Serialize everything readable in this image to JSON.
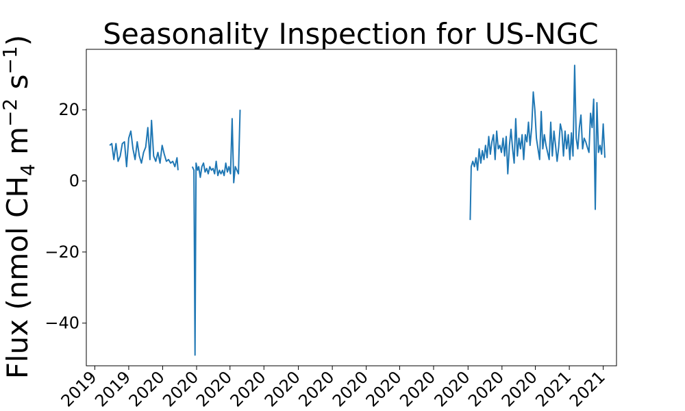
{
  "chart_data": {
    "type": "line",
    "title": "Seasonality Inspection for US-NGC",
    "ylabel_parts": [
      "Flux (nmol CH",
      "4",
      " m",
      "−2",
      " s",
      "−1",
      ")"
    ],
    "ylim": [
      -52,
      37
    ],
    "y_ticks": [
      {
        "value": 20,
        "label": "20"
      },
      {
        "value": 0,
        "label": "0"
      },
      {
        "value": -20,
        "label": "−20"
      },
      {
        "value": -40,
        "label": "−40"
      }
    ],
    "x_ticks": [
      {
        "t": 0.016,
        "label": "2019"
      },
      {
        "t": 0.08,
        "label": "2019"
      },
      {
        "t": 0.144,
        "label": "2020"
      },
      {
        "t": 0.208,
        "label": "2020"
      },
      {
        "t": 0.271,
        "label": "2020"
      },
      {
        "t": 0.335,
        "label": "2020"
      },
      {
        "t": 0.4,
        "label": "2020"
      },
      {
        "t": 0.464,
        "label": "2020"
      },
      {
        "t": 0.528,
        "label": "2020"
      },
      {
        "t": 0.591,
        "label": "2020"
      },
      {
        "t": 0.655,
        "label": "2020"
      },
      {
        "t": 0.72,
        "label": "2020"
      },
      {
        "t": 0.784,
        "label": "2020"
      },
      {
        "t": 0.847,
        "label": "2020"
      },
      {
        "t": 0.911,
        "label": "2021"
      },
      {
        "t": 0.975,
        "label": "2021"
      }
    ],
    "series": [
      {
        "color": "#1f77b4",
        "segments": [
          [
            [
              0.044,
              10.0
            ],
            [
              0.048,
              10.5
            ],
            [
              0.052,
              6.0
            ],
            [
              0.056,
              10.5
            ],
            [
              0.06,
              5.5
            ],
            [
              0.064,
              7.0
            ],
            [
              0.068,
              10.5
            ],
            [
              0.072,
              11.0
            ],
            [
              0.076,
              4.0
            ],
            [
              0.08,
              12.0
            ],
            [
              0.084,
              14.0
            ],
            [
              0.088,
              9.0
            ],
            [
              0.092,
              6.0
            ],
            [
              0.096,
              11.0
            ],
            [
              0.1,
              7.0
            ],
            [
              0.104,
              5.0
            ],
            [
              0.108,
              8.0
            ],
            [
              0.112,
              9.5
            ],
            [
              0.116,
              15.0
            ],
            [
              0.12,
              6.0
            ],
            [
              0.123,
              17.0
            ],
            [
              0.127,
              7.0
            ],
            [
              0.131,
              5.5
            ],
            [
              0.135,
              8.0
            ],
            [
              0.139,
              5.0
            ],
            [
              0.143,
              10.0
            ],
            [
              0.147,
              7.5
            ],
            [
              0.151,
              5.5
            ],
            [
              0.155,
              6.0
            ],
            [
              0.159,
              5.0
            ],
            [
              0.163,
              5.5
            ],
            [
              0.167,
              4.0
            ],
            [
              0.171,
              6.5
            ],
            [
              0.173,
              3.0
            ]
          ],
          [
            [
              0.168,
              3.5
            ]
          ],
          [
            [
              0.2,
              4.0
            ],
            [
              0.203,
              3.0
            ],
            [
              0.205,
              -49.0
            ],
            [
              0.207,
              5.0
            ],
            [
              0.21,
              3.0
            ],
            [
              0.212,
              4.0
            ],
            [
              0.215,
              1.0
            ],
            [
              0.218,
              4.0
            ],
            [
              0.221,
              5.0
            ],
            [
              0.224,
              2.5
            ],
            [
              0.227,
              3.5
            ],
            [
              0.23,
              2.0
            ],
            [
              0.233,
              4.0
            ],
            [
              0.236,
              3.0
            ],
            [
              0.239,
              3.5
            ],
            [
              0.242,
              2.0
            ],
            [
              0.245,
              5.5
            ],
            [
              0.248,
              1.5
            ],
            [
              0.251,
              3.0
            ],
            [
              0.254,
              2.0
            ],
            [
              0.257,
              3.0
            ],
            [
              0.26,
              1.5
            ],
            [
              0.263,
              5.0
            ],
            [
              0.266,
              2.5
            ],
            [
              0.269,
              4.0
            ],
            [
              0.272,
              2.0
            ],
            [
              0.275,
              17.5
            ],
            [
              0.278,
              -0.5
            ],
            [
              0.281,
              4.0
            ],
            [
              0.284,
              3.0
            ],
            [
              0.287,
              2.0
            ],
            [
              0.29,
              20.0
            ]
          ]
        ]
      },
      {
        "color": "#1f77b4",
        "segments": [
          [
            [
              0.724,
              -11.0
            ],
            [
              0.726,
              4.0
            ],
            [
              0.729,
              5.5
            ],
            [
              0.732,
              4.0
            ],
            [
              0.735,
              6.5
            ],
            [
              0.738,
              3.0
            ],
            [
              0.741,
              9.0
            ],
            [
              0.744,
              5.0
            ],
            [
              0.747,
              8.5
            ],
            [
              0.75,
              6.0
            ],
            [
              0.753,
              10.0
            ],
            [
              0.756,
              6.5
            ],
            [
              0.759,
              12.5
            ],
            [
              0.762,
              7.5
            ],
            [
              0.765,
              11.0
            ],
            [
              0.768,
              13.0
            ],
            [
              0.771,
              6.0
            ],
            [
              0.774,
              14.0
            ],
            [
              0.777,
              9.0
            ],
            [
              0.78,
              10.0
            ],
            [
              0.783,
              8.0
            ],
            [
              0.786,
              12.0
            ],
            [
              0.789,
              7.0
            ],
            [
              0.792,
              12.5
            ],
            [
              0.795,
              2.0
            ],
            [
              0.798,
              10.0
            ],
            [
              0.801,
              14.5
            ],
            [
              0.804,
              9.0
            ],
            [
              0.807,
              5.0
            ],
            [
              0.81,
              17.5
            ],
            [
              0.813,
              7.0
            ],
            [
              0.816,
              12.0
            ],
            [
              0.819,
              9.0
            ],
            [
              0.822,
              13.0
            ],
            [
              0.825,
              6.0
            ],
            [
              0.828,
              13.0
            ],
            [
              0.831,
              11.0
            ],
            [
              0.834,
              16.5
            ],
            [
              0.837,
              10.0
            ],
            [
              0.84,
              15.0
            ],
            [
              0.843,
              25.0
            ],
            [
              0.846,
              20.0
            ],
            [
              0.849,
              12.0
            ],
            [
              0.852,
              9.0
            ],
            [
              0.855,
              6.0
            ],
            [
              0.858,
              19.5
            ],
            [
              0.861,
              9.0
            ],
            [
              0.864,
              13.0
            ],
            [
              0.867,
              10.0
            ],
            [
              0.87,
              8.0
            ],
            [
              0.873,
              6.0
            ],
            [
              0.876,
              16.5
            ],
            [
              0.879,
              7.0
            ],
            [
              0.882,
              14.0
            ],
            [
              0.885,
              10.0
            ],
            [
              0.888,
              5.5
            ],
            [
              0.891,
              9.5
            ],
            [
              0.894,
              16.0
            ],
            [
              0.897,
              14.0
            ],
            [
              0.9,
              7.0
            ],
            [
              0.903,
              14.0
            ],
            [
              0.906,
              9.0
            ],
            [
              0.909,
              13.0
            ],
            [
              0.912,
              6.0
            ],
            [
              0.915,
              13.5
            ],
            [
              0.918,
              7.0
            ],
            [
              0.921,
              32.5
            ],
            [
              0.924,
              12.0
            ],
            [
              0.927,
              9.0
            ],
            [
              0.93,
              15.0
            ],
            [
              0.933,
              18.5
            ],
            [
              0.936,
              9.0
            ],
            [
              0.939,
              12.0
            ],
            [
              0.942,
              11.0
            ],
            [
              0.945,
              9.5
            ],
            [
              0.948,
              8.0
            ],
            [
              0.951,
              19.0
            ],
            [
              0.954,
              15.0
            ],
            [
              0.957,
              23.0
            ],
            [
              0.96,
              -8.0
            ],
            [
              0.963,
              22.0
            ],
            [
              0.966,
              8.0
            ],
            [
              0.969,
              10.0
            ],
            [
              0.972,
              7.5
            ],
            [
              0.975,
              16.0
            ],
            [
              0.978,
              6.5
            ]
          ]
        ]
      }
    ]
  }
}
